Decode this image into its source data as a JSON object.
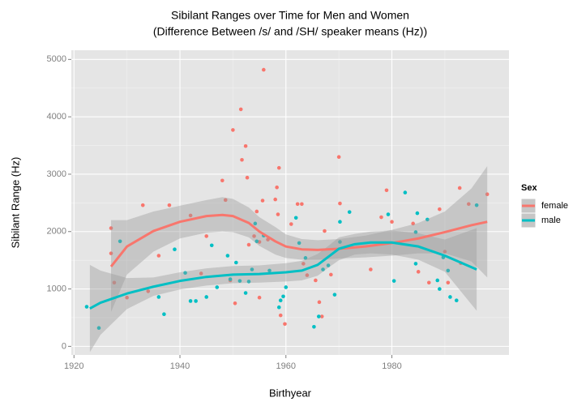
{
  "chart_data": {
    "type": "scatter",
    "title": "Sibilant Ranges over Time for Men and Women",
    "subtitle": "(Difference Between /s/ and /SH/ speaker means (Hz))",
    "x_label": "Birthyear",
    "y_label": "Sibilant Range (Hz)",
    "xlim": [
      1919.5,
      2002.1
    ],
    "ylim": [
      -150,
      5160
    ],
    "xticks": [
      1920,
      1940,
      1960,
      1980
    ],
    "yticks": [
      0,
      1000,
      2000,
      3000,
      4000,
      5000
    ],
    "xminor": [
      1930,
      1950,
      1970,
      1990
    ],
    "yminor": [
      500,
      1500,
      2500,
      3500,
      4500
    ],
    "grid": true,
    "legend_title": "Sex",
    "legend_position": "right",
    "series": [
      {
        "name": "female",
        "color": "#F8766D",
        "x": [
          1927,
          1927,
          1927.6,
          1930,
          1933,
          1934,
          1936,
          1938,
          1942,
          1944,
          1945,
          1948,
          1948.6,
          1949.5,
          1950.4,
          1950,
          1951.5,
          1951.7,
          1952.4,
          1952.7,
          1953,
          1954,
          1954.5,
          1955,
          1955.8,
          1955.6,
          1955,
          1956.6,
          1958,
          1958.7,
          1958.3,
          1958.5,
          1959,
          1959.8,
          1961,
          1962.2,
          1963,
          1963.3,
          1964,
          1965.6,
          1966.3,
          1966.8,
          1967.3,
          1968.5,
          1970,
          1970.2,
          1976,
          1978,
          1979,
          1980,
          1984,
          1985,
          1987,
          1989,
          1990,
          1990.6,
          1992.8,
          1993,
          1994.5,
          1998
        ],
        "values": [
          2060,
          1620,
          1110,
          850,
          2460,
          960,
          1580,
          2460,
          2280,
          1270,
          1920,
          2890,
          2550,
          1150,
          750,
          3770,
          4130,
          3250,
          3490,
          2940,
          1770,
          1920,
          2350,
          1820,
          4820,
          2540,
          850,
          1860,
          2560,
          3110,
          2770,
          2300,
          540,
          390,
          2130,
          2480,
          2480,
          1440,
          1240,
          1150,
          770,
          520,
          2010,
          1250,
          3300,
          2490,
          1340,
          2250,
          2720,
          2170,
          2140,
          1300,
          1110,
          2390,
          1650,
          1110,
          2760,
          1450,
          2480,
          2650
        ],
        "smooth": {
          "x": [
            1927,
            1930,
            1935,
            1940,
            1945,
            1948,
            1950,
            1953,
            1955,
            1958,
            1960,
            1963,
            1966,
            1970,
            1975,
            1980,
            1985,
            1990,
            1995,
            1998
          ],
          "values": [
            1390,
            1740,
            2010,
            2170,
            2270,
            2290,
            2270,
            2150,
            2000,
            1830,
            1740,
            1690,
            1680,
            1700,
            1740,
            1800,
            1880,
            1990,
            2110,
            2170
          ],
          "lower": [
            600,
            1250,
            1650,
            1880,
            1980,
            2000,
            1990,
            1900,
            1750,
            1600,
            1540,
            1510,
            1510,
            1530,
            1550,
            1580,
            1620,
            1620,
            1480,
            1200
          ],
          "upper": [
            2200,
            2200,
            2350,
            2450,
            2550,
            2600,
            2570,
            2420,
            2250,
            2080,
            1950,
            1870,
            1850,
            1870,
            1930,
            2030,
            2150,
            2350,
            2750,
            3140
          ]
        }
      },
      {
        "name": "male",
        "color": "#00BFC4",
        "x": [
          1922.4,
          1924.7,
          1928.7,
          1936,
          1937,
          1939,
          1941,
          1942,
          1943,
          1945,
          1946,
          1947,
          1949,
          1949.5,
          1950.6,
          1951.3,
          1952.4,
          1953,
          1953.6,
          1954.5,
          1954.2,
          1955.8,
          1956.9,
          1958.7,
          1959,
          1959.5,
          1960,
          1961.9,
          1962.5,
          1963.7,
          1965.3,
          1966.2,
          1967,
          1968,
          1969.2,
          1970.2,
          1970.2,
          1972,
          1979.3,
          1980.4,
          1982.5,
          1984.5,
          1984.5,
          1984.8,
          1986.7,
          1988.6,
          1989,
          1989.7,
          1990.6,
          1991,
          1992.2,
          1996
        ],
        "values": [
          690,
          320,
          1830,
          860,
          560,
          1690,
          1280,
          790,
          790,
          860,
          1760,
          1030,
          1580,
          1170,
          1460,
          1140,
          930,
          1130,
          1340,
          1830,
          2140,
          1930,
          1320,
          680,
          800,
          870,
          1030,
          2240,
          1800,
          1540,
          340,
          520,
          1340,
          1410,
          900,
          1820,
          2170,
          2340,
          2300,
          1140,
          2680,
          1990,
          1440,
          2320,
          2210,
          1150,
          1000,
          1550,
          1320,
          860,
          800,
          2460
        ],
        "smooth": {
          "x": [
            1923,
            1925,
            1930,
            1935,
            1940,
            1945,
            1950,
            1955,
            1960,
            1963,
            1966,
            1968,
            1970,
            1973,
            1976,
            1980,
            1985,
            1990,
            1996
          ],
          "values": [
            660,
            760,
            920,
            1040,
            1140,
            1210,
            1250,
            1260,
            1290,
            1320,
            1420,
            1560,
            1700,
            1780,
            1810,
            1810,
            1740,
            1580,
            1340
          ],
          "lower": [
            -100,
            200,
            650,
            880,
            990,
            1060,
            1100,
            1110,
            1130,
            1150,
            1230,
            1370,
            1500,
            1600,
            1620,
            1600,
            1510,
            1300,
            620
          ],
          "upper": [
            1420,
            1320,
            1190,
            1200,
            1290,
            1360,
            1400,
            1410,
            1450,
            1490,
            1610,
            1750,
            1900,
            1960,
            2000,
            2020,
            1970,
            1860,
            2060
          ]
        }
      }
    ]
  }
}
